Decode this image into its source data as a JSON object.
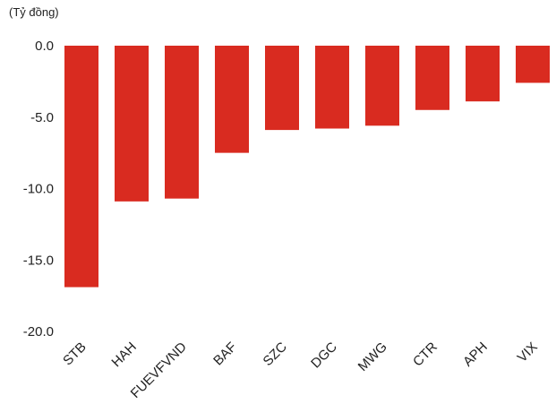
{
  "chart_data": {
    "type": "bar",
    "unit_label": "(Tỷ đồng)",
    "categories": [
      "STB",
      "HAH",
      "FUEVFVND",
      "BAF",
      "SZC",
      "DGC",
      "MWG",
      "CTR",
      "APH",
      "VIX"
    ],
    "values": [
      -16.9,
      -10.9,
      -10.7,
      -7.5,
      -5.9,
      -5.8,
      -5.6,
      -4.5,
      -3.9,
      -2.6
    ],
    "ylim": [
      -20,
      0
    ],
    "y_ticks": [
      "0.0",
      "-5.0",
      "-10.0",
      "-15.0",
      "-20.0"
    ],
    "y_tick_values": [
      0,
      -5,
      -10,
      -15,
      -20
    ],
    "grid": false,
    "legend": "none",
    "bar_color": "#d92b20"
  }
}
